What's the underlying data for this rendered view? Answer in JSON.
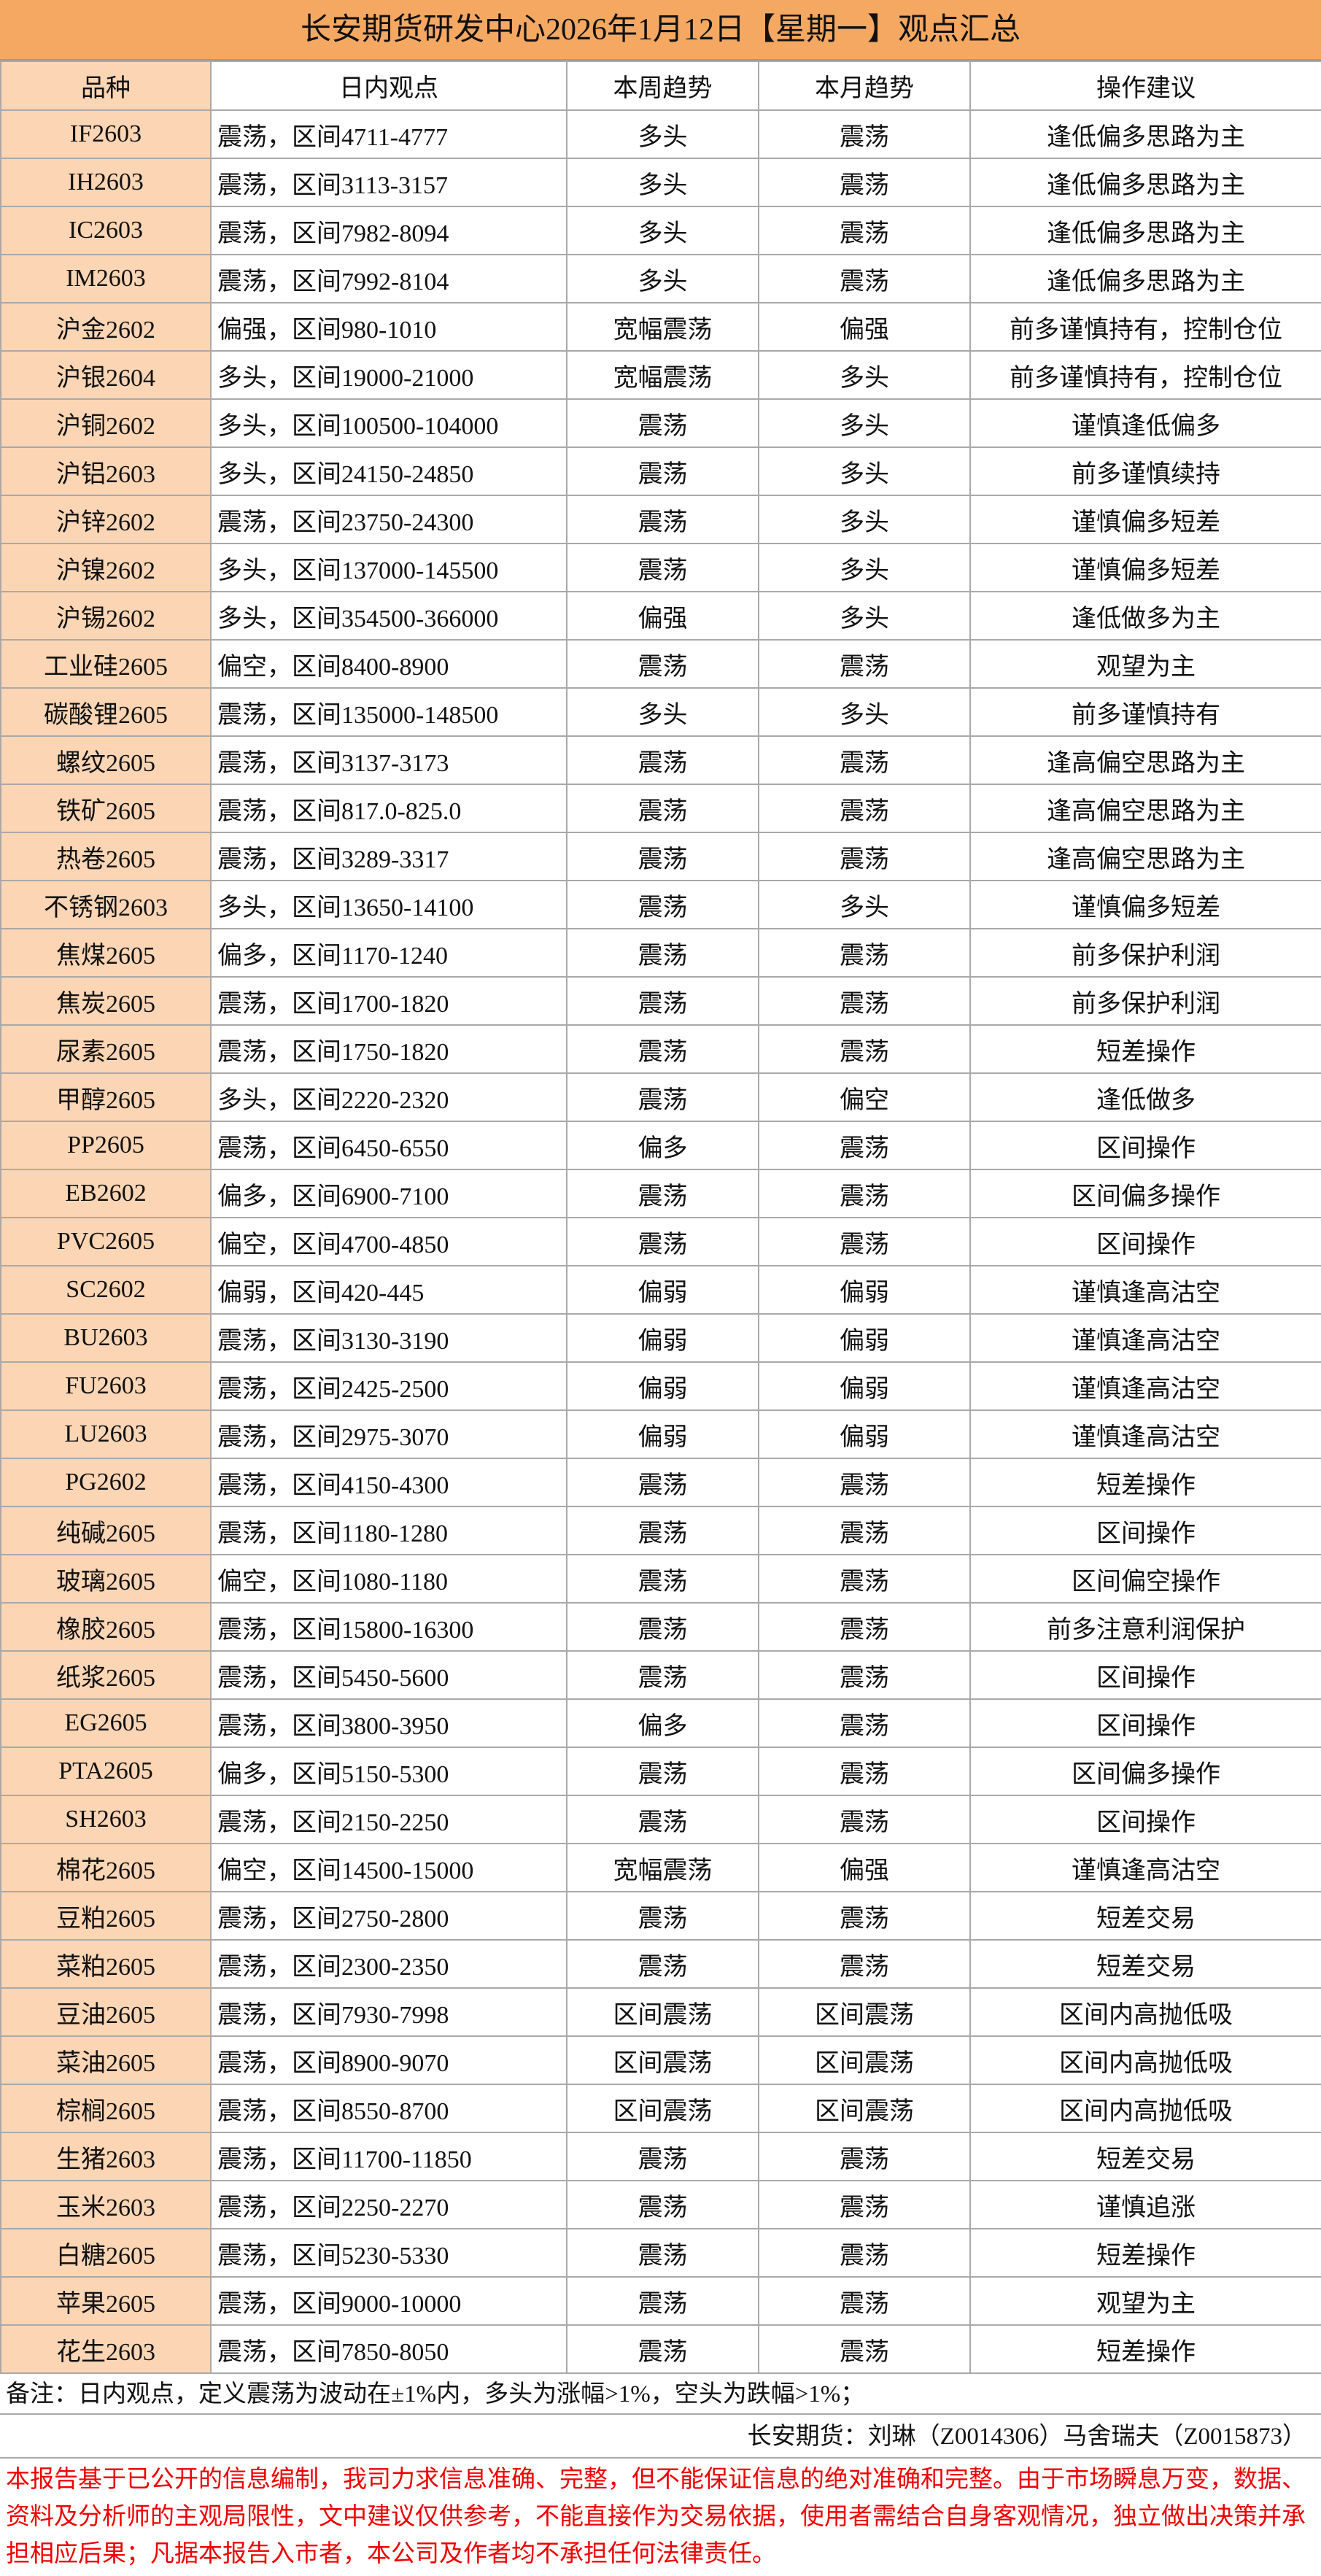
{
  "header": {
    "title": "长安期货研发中心2026年1月12日【星期一】观点汇总"
  },
  "table": {
    "columns": [
      "品种",
      "日内观点",
      "本周趋势",
      "本月趋势",
      "操作建议"
    ],
    "rows": [
      [
        "IF2603",
        "震荡，区间4711-4777",
        "多头",
        "震荡",
        "逢低偏多思路为主"
      ],
      [
        "IH2603",
        "震荡，区间3113-3157",
        "多头",
        "震荡",
        "逢低偏多思路为主"
      ],
      [
        "IC2603",
        "震荡，区间7982-8094",
        "多头",
        "震荡",
        "逢低偏多思路为主"
      ],
      [
        "IM2603",
        "震荡，区间7992-8104",
        "多头",
        "震荡",
        "逢低偏多思路为主"
      ],
      [
        "沪金2602",
        "偏强，区间980-1010",
        "宽幅震荡",
        "偏强",
        "前多谨慎持有，控制仓位"
      ],
      [
        "沪银2604",
        "多头，区间19000-21000",
        "宽幅震荡",
        "多头",
        "前多谨慎持有，控制仓位"
      ],
      [
        "沪铜2602",
        "多头，区间100500-104000",
        "震荡",
        "多头",
        "谨慎逢低偏多"
      ],
      [
        "沪铝2603",
        "多头，区间24150-24850",
        "震荡",
        "多头",
        "前多谨慎续持"
      ],
      [
        "沪锌2602",
        "震荡，区间23750-24300",
        "震荡",
        "多头",
        "谨慎偏多短差"
      ],
      [
        "沪镍2602",
        "多头，区间137000-145500",
        "震荡",
        "多头",
        "谨慎偏多短差"
      ],
      [
        "沪锡2602",
        "多头，区间354500-366000",
        "偏强",
        "多头",
        "逢低做多为主"
      ],
      [
        "工业硅2605",
        "偏空，区间8400-8900",
        "震荡",
        "震荡",
        "观望为主"
      ],
      [
        "碳酸锂2605",
        "震荡，区间135000-148500",
        "多头",
        "多头",
        "前多谨慎持有"
      ],
      [
        "螺纹2605",
        "震荡，区间3137-3173",
        "震荡",
        "震荡",
        "逢高偏空思路为主"
      ],
      [
        "铁矿2605",
        "震荡，区间817.0-825.0",
        "震荡",
        "震荡",
        "逢高偏空思路为主"
      ],
      [
        "热卷2605",
        "震荡，区间3289-3317",
        "震荡",
        "震荡",
        "逢高偏空思路为主"
      ],
      [
        "不锈钢2603",
        "多头，区间13650-14100",
        "震荡",
        "多头",
        "谨慎偏多短差"
      ],
      [
        "焦煤2605",
        "偏多，区间1170-1240",
        "震荡",
        "震荡",
        "前多保护利润"
      ],
      [
        "焦炭2605",
        "震荡，区间1700-1820",
        "震荡",
        "震荡",
        "前多保护利润"
      ],
      [
        "尿素2605",
        "震荡，区间1750-1820",
        "震荡",
        "震荡",
        "短差操作"
      ],
      [
        "甲醇2605",
        "多头，区间2220-2320",
        "震荡",
        "偏空",
        "逢低做多"
      ],
      [
        "PP2605",
        "震荡，区间6450-6550",
        "偏多",
        "震荡",
        "区间操作"
      ],
      [
        "EB2602",
        "偏多，区间6900-7100",
        "震荡",
        "震荡",
        "区间偏多操作"
      ],
      [
        "PVC2605",
        "偏空，区间4700-4850",
        "震荡",
        "震荡",
        "区间操作"
      ],
      [
        "SC2602",
        "偏弱，区间420-445",
        "偏弱",
        "偏弱",
        "谨慎逢高沽空"
      ],
      [
        "BU2603",
        "震荡，区间3130-3190",
        "偏弱",
        "偏弱",
        "谨慎逢高沽空"
      ],
      [
        "FU2603",
        "震荡，区间2425-2500",
        "偏弱",
        "偏弱",
        "谨慎逢高沽空"
      ],
      [
        "LU2603",
        "震荡，区间2975-3070",
        "偏弱",
        "偏弱",
        "谨慎逢高沽空"
      ],
      [
        "PG2602",
        "震荡，区间4150-4300",
        "震荡",
        "震荡",
        "短差操作"
      ],
      [
        "纯碱2605",
        "震荡，区间1180-1280",
        "震荡",
        "震荡",
        "区间操作"
      ],
      [
        "玻璃2605",
        "偏空，区间1080-1180",
        "震荡",
        "震荡",
        "区间偏空操作"
      ],
      [
        "橡胶2605",
        "震荡，区间15800-16300",
        "震荡",
        "震荡",
        "前多注意利润保护"
      ],
      [
        "纸浆2605",
        "震荡，区间5450-5600",
        "震荡",
        "震荡",
        "区间操作"
      ],
      [
        "EG2605",
        "震荡，区间3800-3950",
        "偏多",
        "震荡",
        "区间操作"
      ],
      [
        "PTA2605",
        "偏多，区间5150-5300",
        "震荡",
        "震荡",
        "区间偏多操作"
      ],
      [
        "SH2603",
        "震荡，区间2150-2250",
        "震荡",
        "震荡",
        "区间操作"
      ],
      [
        "棉花2605",
        "偏空，区间14500-15000",
        "宽幅震荡",
        "偏强",
        "谨慎逢高沽空"
      ],
      [
        "豆粕2605",
        "震荡，区间2750-2800",
        "震荡",
        "震荡",
        "短差交易"
      ],
      [
        "菜粕2605",
        "震荡，区间2300-2350",
        "震荡",
        "震荡",
        "短差交易"
      ],
      [
        "豆油2605",
        "震荡，区间7930-7998",
        "区间震荡",
        "区间震荡",
        "区间内高抛低吸"
      ],
      [
        "菜油2605",
        "震荡，区间8900-9070",
        "区间震荡",
        "区间震荡",
        "区间内高抛低吸"
      ],
      [
        "棕榈2605",
        "震荡，区间8550-8700",
        "区间震荡",
        "区间震荡",
        "区间内高抛低吸"
      ],
      [
        "生猪2603",
        "震荡，区间11700-11850",
        "震荡",
        "震荡",
        "短差交易"
      ],
      [
        "玉米2603",
        "震荡，区间2250-2270",
        "震荡",
        "震荡",
        "谨慎追涨"
      ],
      [
        "白糖2605",
        "震荡，区间5230-5330",
        "震荡",
        "震荡",
        "短差操作"
      ],
      [
        "苹果2605",
        "震荡，区间9000-10000",
        "震荡",
        "震荡",
        "观望为主"
      ],
      [
        "花生2603",
        "震荡，区间7850-8050",
        "震荡",
        "震荡",
        "短差操作"
      ]
    ]
  },
  "note": "备注：日内观点，定义震荡为波动在±1%内，多头为涨幅>1%，空头为跌幅>1%；",
  "signature": "长安期货：刘琳（Z0014306）马舍瑞夫（Z0015873）",
  "disclaimer": "本报告基于已公开的信息编制，我司力求信息准确、完整，但不能保证信息的绝对准确和完整。由于市场瞬息万变，数据、资料及分析师的主观局限性，文中建议仅供参考，不能直接作为交易依据，使用者需结合自身客观情况，独立做出决策并承担相应后果；凡据本报告入市者，本公司及作者均不承担任何法律责任。"
}
